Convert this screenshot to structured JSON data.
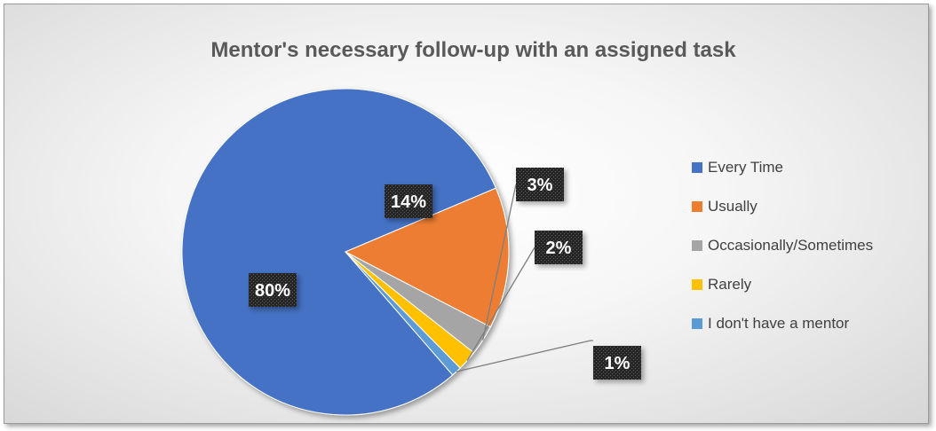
{
  "chart_data": {
    "type": "pie",
    "title": "Mentor's necessary follow-up with an assigned task",
    "slices": [
      {
        "label": "Every Time",
        "value": 80,
        "display": "80%",
        "color": "#4472C4"
      },
      {
        "label": "Usually",
        "value": 14,
        "display": "14%",
        "color": "#ED7D31"
      },
      {
        "label": "Occasionally/Sometimes",
        "value": 3,
        "display": "3%",
        "color": "#A5A5A5"
      },
      {
        "label": "Rarely",
        "value": 2,
        "display": "2%",
        "color": "#FFC000"
      },
      {
        "label": "I don't have a mentor",
        "value": 1,
        "display": "1%",
        "color": "#5B9BD5"
      }
    ],
    "legend_position": "right",
    "data_label_style": "white bold text on dark patterned boxes"
  }
}
